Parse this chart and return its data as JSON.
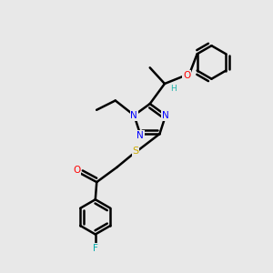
{
  "bg_color": "#e8e8e8",
  "atom_colors": {
    "C": "#000000",
    "N": "#0000ff",
    "O": "#ff0000",
    "S": "#ccaa00",
    "F": "#00aaaa",
    "H": "#20b2aa"
  },
  "bond_color": "#000000",
  "bond_width": 1.8,
  "figsize": [
    3.0,
    3.0
  ],
  "dpi": 100,
  "xlim": [
    0,
    10
  ],
  "ylim": [
    0,
    10
  ]
}
